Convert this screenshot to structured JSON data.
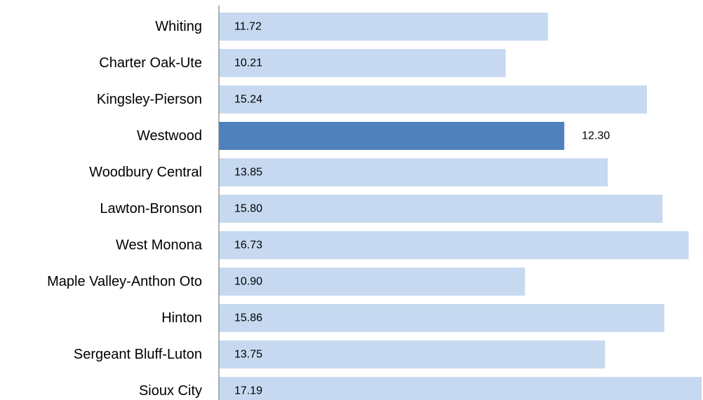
{
  "chart_data": {
    "type": "bar",
    "orientation": "horizontal",
    "categories": [
      "Whiting",
      "Charter Oak-Ute",
      "Kingsley-Pierson",
      "Westwood",
      "Woodbury Central",
      "Lawton-Bronson",
      "West Monona",
      "Maple Valley-Anthon Oto",
      "Hinton",
      "Sergeant Bluff-Luton",
      "Sioux City"
    ],
    "values": [
      11.72,
      10.21,
      15.24,
      12.3,
      13.85,
      15.8,
      16.73,
      10.9,
      15.86,
      13.75,
      17.19
    ],
    "value_labels": [
      "11.72",
      "10.21",
      "15.24",
      "12.30",
      "13.85",
      "15.80",
      "16.73",
      "10.90",
      "15.86",
      "13.75",
      "17.19"
    ],
    "highlight": "Westwood",
    "title": "",
    "xlabel": "",
    "ylabel": "",
    "xlim": [
      0,
      17.19
    ],
    "grid": false,
    "legend": "none",
    "colors": {
      "bar": "#c6d9f0",
      "highlight_bar": "#4f81bd",
      "axis": "#808080",
      "text": "#000000"
    }
  }
}
